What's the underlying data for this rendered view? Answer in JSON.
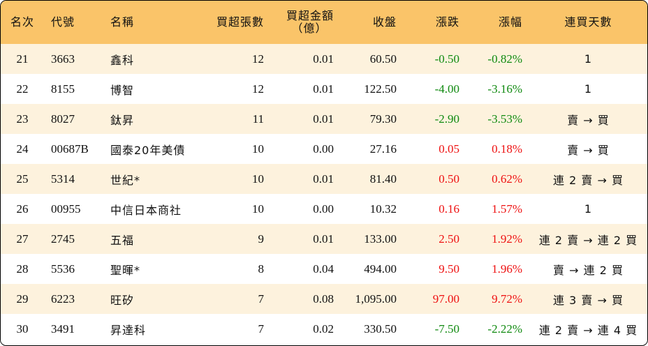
{
  "headers": {
    "rank": "名次",
    "code": "代號",
    "name": "名稱",
    "net_lots": "買超張數",
    "net_amount_line1": "買超金額",
    "net_amount_line2": "（億）",
    "close": "收盤",
    "change": "漲跌",
    "change_pct": "漲幅",
    "streak": "連買天數"
  },
  "colors": {
    "header_bg": "#fac469",
    "row_alt_bg": "#fdf2dd",
    "up": "#ee1111",
    "down": "#108a10"
  },
  "rows": [
    {
      "rank": "21",
      "code": "3663",
      "name": "鑫科",
      "net_lots": "12",
      "net_amount": "0.01",
      "close": "60.50",
      "change": "-0.50",
      "change_pct": "-0.82%",
      "streak": "1"
    },
    {
      "rank": "22",
      "code": "8155",
      "name": "博智",
      "net_lots": "12",
      "net_amount": "0.01",
      "close": "122.50",
      "change": "-4.00",
      "change_pct": "-3.16%",
      "streak": "1"
    },
    {
      "rank": "23",
      "code": "8027",
      "name": "鈦昇",
      "net_lots": "11",
      "net_amount": "0.01",
      "close": "79.30",
      "change": "-2.90",
      "change_pct": "-3.53%",
      "streak": "賣 → 買"
    },
    {
      "rank": "24",
      "code": "00687B",
      "name": "國泰20年美債",
      "net_lots": "10",
      "net_amount": "0.00",
      "close": "27.16",
      "change": "0.05",
      "change_pct": "0.18%",
      "streak": "賣 → 買"
    },
    {
      "rank": "25",
      "code": "5314",
      "name": "世紀*",
      "net_lots": "10",
      "net_amount": "0.01",
      "close": "81.40",
      "change": "0.50",
      "change_pct": "0.62%",
      "streak": "連 2 賣 → 買"
    },
    {
      "rank": "26",
      "code": "00955",
      "name": "中信日本商社",
      "net_lots": "10",
      "net_amount": "0.00",
      "close": "10.32",
      "change": "0.16",
      "change_pct": "1.57%",
      "streak": "1"
    },
    {
      "rank": "27",
      "code": "2745",
      "name": "五福",
      "net_lots": "9",
      "net_amount": "0.01",
      "close": "133.00",
      "change": "2.50",
      "change_pct": "1.92%",
      "streak": "連 2 賣 → 連 2 買"
    },
    {
      "rank": "28",
      "code": "5536",
      "name": "聖暉*",
      "net_lots": "8",
      "net_amount": "0.04",
      "close": "494.00",
      "change": "9.50",
      "change_pct": "1.96%",
      "streak": "賣 → 連 2 買"
    },
    {
      "rank": "29",
      "code": "6223",
      "name": "旺矽",
      "net_lots": "7",
      "net_amount": "0.08",
      "close": "1,095.00",
      "change": "97.00",
      "change_pct": "9.72%",
      "streak": "連 3 賣 → 買"
    },
    {
      "rank": "30",
      "code": "3491",
      "name": "昇達科",
      "net_lots": "7",
      "net_amount": "0.02",
      "close": "330.50",
      "change": "-7.50",
      "change_pct": "-2.22%",
      "streak": "連 2 賣 → 連 4 買"
    }
  ]
}
